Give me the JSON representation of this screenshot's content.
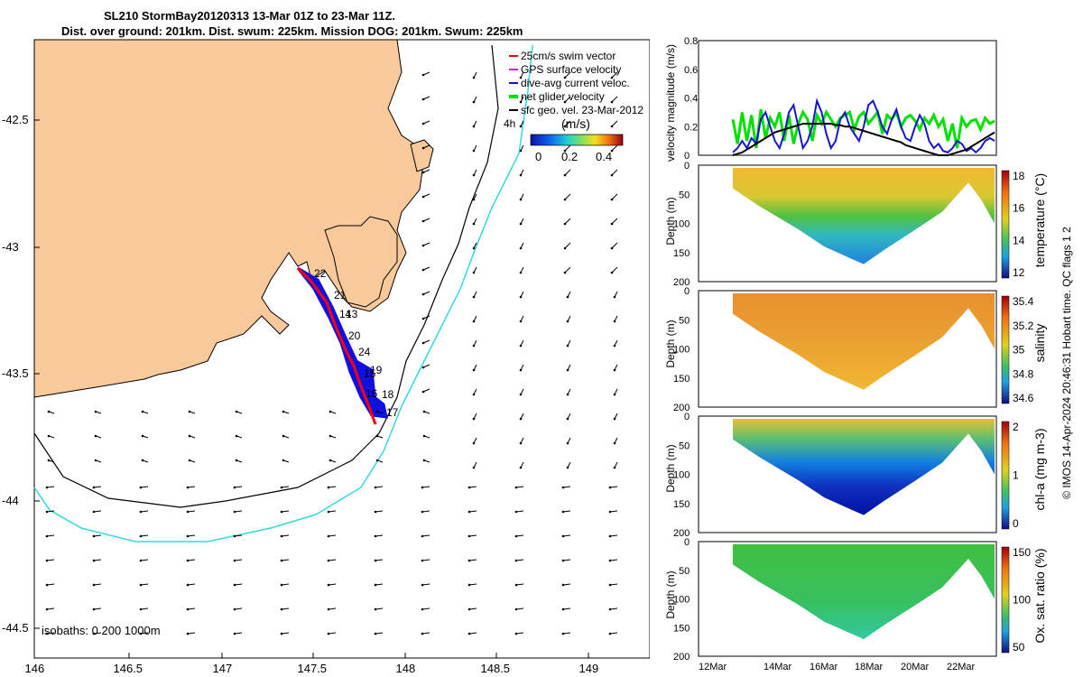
{
  "header": {
    "line1": "SL210 StormBay20120313 13-Mar 01Z to 23-Mar 11Z.",
    "line2": "Dist. over ground: 201km. Dist. swum: 225km. Mission DOG: 201km. Swum: 225km"
  },
  "map": {
    "lat_ticks": [
      "-42.5",
      "-43",
      "-43.5",
      "-44",
      "-44.5"
    ],
    "lon_ticks": [
      "146",
      "146.5",
      "147",
      "147.5",
      "148",
      "148.5",
      "149"
    ],
    "legend": [
      "25cm/s swim vector",
      "GPS surface velocity",
      "dive-avg current veloc.",
      "net glider velocity",
      "sfc geo. vel. 23-Mar-2012"
    ],
    "colorbar_label": "(m/s)",
    "colorbar_ticks": [
      "0",
      "0.2",
      "0.4"
    ],
    "isobaths": "isobaths: 0   200  1000m",
    "track_labels": [
      {
        "t": "22"
      },
      {
        "t": "21"
      },
      {
        "t": "14"
      },
      {
        "t": "13"
      },
      {
        "t": "20"
      },
      {
        "t": "24"
      },
      {
        "t": "19"
      },
      {
        "t": "15"
      },
      {
        "t": "16"
      },
      {
        "t": "18"
      },
      {
        "t": "17"
      },
      {
        "t": "4h"
      }
    ],
    "colors": {
      "land": "#f8c99b",
      "depth1000": "#000000",
      "depth200": "#35d8e0",
      "track": "#ff0000",
      "track_fill": "#1010e0"
    }
  },
  "chart_data": [
    {
      "type": "line",
      "ylabel": "velocity magnitude (m/s)",
      "ylim": [
        0,
        0.8
      ],
      "yticks": [
        "0",
        "0.2",
        "0.4",
        "0.6",
        "0.8"
      ],
      "series": [
        {
          "color": "#00e000",
          "values": [
            0.25,
            0.08,
            0.3,
            0.1,
            0.28,
            0.05,
            0.32,
            0.12,
            0.26,
            0.2,
            0.3,
            0.1,
            0.28,
            0.08,
            0.22,
            0.3,
            0.25,
            0.1,
            0.28,
            0.22,
            0.3,
            0.25,
            0.2,
            0.26,
            0.28,
            0.3,
            0.18,
            0.27,
            0.3,
            0.22,
            0.26,
            0.3,
            0.15,
            0.28,
            0.25,
            0.3,
            0.2,
            0.26,
            0.28,
            0.24,
            0.18,
            0.26,
            0.22,
            0.28,
            0.2,
            0.25,
            0.1,
            0.22,
            0.05,
            0.26,
            0.2,
            0.24,
            0.25,
            0.18,
            0.26,
            0.22,
            0.24
          ]
        },
        {
          "color": "#1515d0",
          "values": [
            0.02,
            0.05,
            0.1,
            0.05,
            0.12,
            0.08,
            0.25,
            0.3,
            0.2,
            0.1,
            0.05,
            0.15,
            0.3,
            0.35,
            0.2,
            0.05,
            0.1,
            0.2,
            0.38,
            0.3,
            0.15,
            0.05,
            0.1,
            0.25,
            0.3,
            0.2,
            0.15,
            0.1,
            0.2,
            0.35,
            0.38,
            0.3,
            0.2,
            0.15,
            0.25,
            0.32,
            0.2,
            0.12,
            0.1,
            0.2,
            0.28,
            0.22,
            0.1,
            0.05,
            0.08,
            0.03,
            0.02,
            0.05,
            0.1,
            0.08,
            0.03,
            0.05,
            0.02,
            0.05,
            0.1,
            0.12,
            0.1
          ]
        },
        {
          "color": "#000000",
          "values": [
            0.0,
            0.01,
            0.02,
            0.04,
            0.06,
            0.08,
            0.1,
            0.12,
            0.14,
            0.16,
            0.17,
            0.18,
            0.19,
            0.2,
            0.21,
            0.22,
            0.22,
            0.22,
            0.22,
            0.22,
            0.22,
            0.22,
            0.21,
            0.21,
            0.2,
            0.2,
            0.19,
            0.18,
            0.17,
            0.16,
            0.15,
            0.14,
            0.13,
            0.12,
            0.11,
            0.1,
            0.09,
            0.07,
            0.06,
            0.05,
            0.04,
            0.03,
            0.02,
            0.01,
            0.0,
            0.0,
            0.0,
            0.01,
            0.02,
            0.03,
            0.04,
            0.06,
            0.08,
            0.1,
            0.12,
            0.14,
            0.16
          ]
        }
      ]
    },
    {
      "type": "heatmap",
      "ylabel": "Depth (m)",
      "colorbar_label": "temperature (°C)",
      "colorbar_ticks": [
        "18",
        "16",
        "14",
        "12"
      ],
      "ylim": [
        0,
        200
      ],
      "yticks": [
        "0",
        "50",
        "100",
        "150",
        "200"
      ],
      "layers": [
        "#f3b830",
        "#c8d030",
        "#40c040",
        "#30b0c8",
        "#3090e0"
      ]
    },
    {
      "type": "heatmap",
      "ylabel": "Depth (m)",
      "colorbar_label": "salinity",
      "colorbar_ticks": [
        "35.4",
        "35.2",
        "35",
        "34.8",
        "34.6"
      ],
      "ylim": [
        0,
        200
      ],
      "yticks": [
        "0",
        "50",
        "100",
        "150",
        "200"
      ],
      "layers": [
        "#e89030",
        "#e8a030",
        "#e8a828",
        "#f0b030",
        "#f0b830"
      ]
    },
    {
      "type": "heatmap",
      "ylabel": "Depth (m)",
      "colorbar_label": "chl-a (mg m-3)",
      "colorbar_ticks": [
        "2",
        "1",
        "0"
      ],
      "ylim": [
        0,
        200
      ],
      "yticks": [
        "0",
        "50",
        "100",
        "150",
        "200"
      ],
      "layers": [
        "#f0c030",
        "#60c080",
        "#1080e0",
        "#1030c0",
        "#0010a0"
      ]
    },
    {
      "type": "heatmap",
      "ylabel": "Depth (m)",
      "colorbar_label": "Ox. sat. ratio (%)",
      "colorbar_ticks": [
        "150",
        "100",
        "50"
      ],
      "ylim": [
        0,
        200
      ],
      "yticks": [
        "0",
        "50",
        "100",
        "150",
        "200"
      ],
      "layers": [
        "#40c040",
        "#40c048",
        "#38c060",
        "#30c080",
        "#30c8a0"
      ]
    }
  ],
  "x_ticks": [
    "12Mar",
    "14Mar",
    "16Mar",
    "18Mar",
    "20Mar",
    "22Mar"
  ],
  "footer": "© IMOS 14-Apr-2024 20:46:31 Hobart time. QC flags 1  2"
}
